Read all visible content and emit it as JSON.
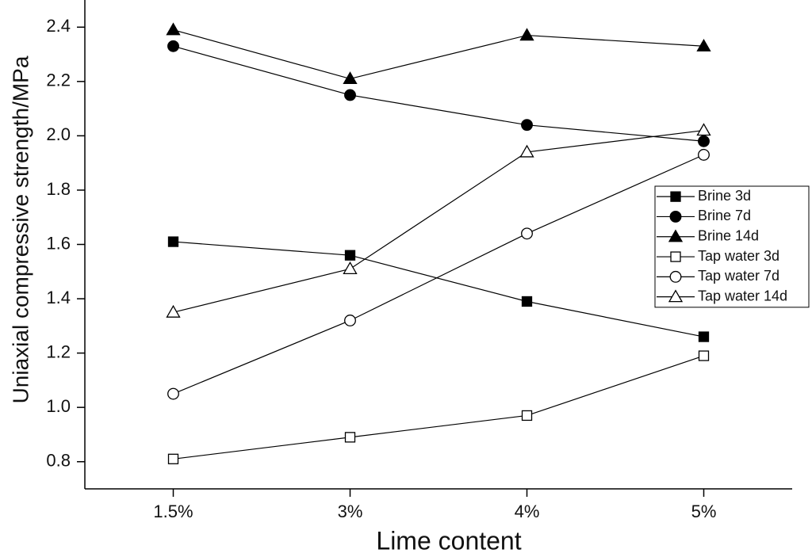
{
  "chart_data": {
    "type": "line",
    "x_label": "Lime content",
    "y_label": "Uniaxial compressive strength/MPa",
    "categories": [
      "1.5%",
      "3%",
      "4%",
      "5%"
    ],
    "series": [
      {
        "name": "Brine 3d",
        "color": "#000000",
        "marker": "square",
        "filled": true,
        "values": [
          1.61,
          1.56,
          1.39,
          1.26
        ]
      },
      {
        "name": "Brine 7d",
        "color": "#000000",
        "marker": "circle",
        "filled": true,
        "values": [
          2.33,
          2.15,
          2.04,
          1.98
        ]
      },
      {
        "name": "Brine 14d",
        "color": "#000000",
        "marker": "triangle",
        "filled": true,
        "values": [
          2.39,
          2.21,
          2.37,
          2.33
        ]
      },
      {
        "name": "Tap water 3d",
        "color": "#000000",
        "marker": "square",
        "filled": false,
        "values": [
          0.81,
          0.89,
          0.97,
          1.19
        ]
      },
      {
        "name": "Tap water 7d",
        "color": "#000000",
        "marker": "circle",
        "filled": false,
        "values": [
          1.05,
          1.32,
          1.64,
          1.93
        ]
      },
      {
        "name": "Tap water 14d",
        "color": "#000000",
        "marker": "triangle",
        "filled": false,
        "values": [
          1.35,
          1.51,
          1.94,
          2.02
        ]
      }
    ],
    "ylim": [
      0.7,
      2.5
    ],
    "yticks": [
      {
        "value": 0.8,
        "label": "0.8"
      },
      {
        "value": 1.0,
        "label": "1.0"
      },
      {
        "value": 1.2,
        "label": "1.2"
      },
      {
        "value": 1.4,
        "label": "1.4"
      },
      {
        "value": 1.6,
        "label": "1.6"
      },
      {
        "value": 1.8,
        "label": "1.8"
      },
      {
        "value": 2.0,
        "label": "2.0"
      },
      {
        "value": 2.2,
        "label": "2.2"
      },
      {
        "value": 2.4,
        "label": "2.4"
      }
    ],
    "grid": false,
    "legend": "right"
  }
}
